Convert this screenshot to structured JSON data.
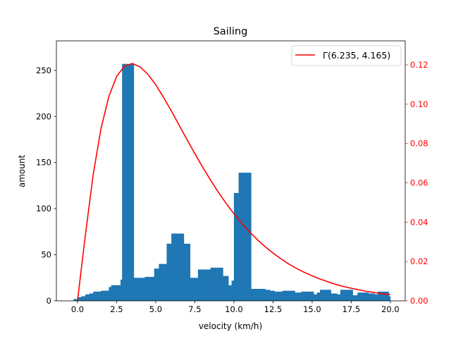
{
  "chart_data": {
    "type": "bar",
    "title": "Sailing",
    "xlabel": "velocity (km/h)",
    "ylabel": "amount",
    "xlim": [
      -1.35,
      20.95
    ],
    "ylim": [
      0,
      282
    ],
    "y2lim": [
      0,
      0.1322
    ],
    "xticks": [
      "0.0",
      "2.5",
      "5.0",
      "7.5",
      "10.0",
      "12.5",
      "15.0",
      "17.5",
      "20.0"
    ],
    "xtick_values": [
      0,
      2.5,
      5,
      7.5,
      10,
      12.5,
      15,
      17.5,
      20
    ],
    "yticks": [
      "0",
      "50",
      "100",
      "150",
      "200",
      "250"
    ],
    "ytick_values": [
      0,
      50,
      100,
      150,
      200,
      250
    ],
    "y2ticks": [
      "0.00",
      "0.02",
      "0.04",
      "0.06",
      "0.08",
      "0.10",
      "0.12"
    ],
    "y2tick_values": [
      0,
      0.02,
      0.04,
      0.06,
      0.08,
      0.1,
      0.12
    ],
    "bar_color": "#1f77b4",
    "line_color": "#ff0000",
    "legend": {
      "label": "Γ(6.235, 4.165)",
      "placement": "top-right"
    },
    "bars": [
      {
        "x0": -0.25,
        "x1": 0.0,
        "value": 2
      },
      {
        "x0": 0.0,
        "x1": 0.25,
        "value": 4
      },
      {
        "x0": 0.25,
        "x1": 0.5,
        "value": 5
      },
      {
        "x0": 0.5,
        "x1": 0.75,
        "value": 7
      },
      {
        "x0": 0.75,
        "x1": 1.0,
        "value": 8
      },
      {
        "x0": 1.0,
        "x1": 1.5,
        "value": 10
      },
      {
        "x0": 1.5,
        "x1": 2.0,
        "value": 11
      },
      {
        "x0": 2.0,
        "x1": 2.15,
        "value": 15
      },
      {
        "x0": 2.15,
        "x1": 2.75,
        "value": 17
      },
      {
        "x0": 2.75,
        "x1": 2.85,
        "value": 23
      },
      {
        "x0": 2.85,
        "x1": 3.6,
        "value": 257
      },
      {
        "x0": 3.6,
        "x1": 4.3,
        "value": 25
      },
      {
        "x0": 4.3,
        "x1": 4.9,
        "value": 26
      },
      {
        "x0": 4.9,
        "x1": 5.2,
        "value": 35
      },
      {
        "x0": 5.2,
        "x1": 5.7,
        "value": 40
      },
      {
        "x0": 5.7,
        "x1": 6.0,
        "value": 62
      },
      {
        "x0": 6.0,
        "x1": 6.8,
        "value": 73
      },
      {
        "x0": 6.8,
        "x1": 7.2,
        "value": 62
      },
      {
        "x0": 7.2,
        "x1": 7.7,
        "value": 25
      },
      {
        "x0": 7.7,
        "x1": 8.5,
        "value": 34
      },
      {
        "x0": 8.5,
        "x1": 9.3,
        "value": 36
      },
      {
        "x0": 9.3,
        "x1": 9.65,
        "value": 27
      },
      {
        "x0": 9.65,
        "x1": 9.85,
        "value": 17
      },
      {
        "x0": 9.85,
        "x1": 10.0,
        "value": 22
      },
      {
        "x0": 10.0,
        "x1": 10.3,
        "value": 117
      },
      {
        "x0": 10.3,
        "x1": 11.1,
        "value": 139
      },
      {
        "x0": 11.1,
        "x1": 12.0,
        "value": 13
      },
      {
        "x0": 12.0,
        "x1": 12.3,
        "value": 12
      },
      {
        "x0": 12.3,
        "x1": 12.6,
        "value": 11
      },
      {
        "x0": 12.6,
        "x1": 13.1,
        "value": 10
      },
      {
        "x0": 13.1,
        "x1": 13.9,
        "value": 11
      },
      {
        "x0": 13.9,
        "x1": 14.3,
        "value": 9
      },
      {
        "x0": 14.3,
        "x1": 15.1,
        "value": 10
      },
      {
        "x0": 15.1,
        "x1": 15.3,
        "value": 7
      },
      {
        "x0": 15.3,
        "x1": 15.5,
        "value": 9
      },
      {
        "x0": 15.5,
        "x1": 16.2,
        "value": 12
      },
      {
        "x0": 16.2,
        "x1": 16.6,
        "value": 8
      },
      {
        "x0": 16.6,
        "x1": 16.8,
        "value": 7
      },
      {
        "x0": 16.8,
        "x1": 17.6,
        "value": 12
      },
      {
        "x0": 17.6,
        "x1": 17.9,
        "value": 6
      },
      {
        "x0": 17.9,
        "x1": 18.6,
        "value": 9
      },
      {
        "x0": 18.6,
        "x1": 19.0,
        "value": 8
      },
      {
        "x0": 19.0,
        "x1": 19.2,
        "value": 7
      },
      {
        "x0": 19.2,
        "x1": 19.9,
        "value": 10
      },
      {
        "x0": 19.9,
        "x1": 20.0,
        "value": 5
      }
    ],
    "curve": {
      "x": [
        0,
        0.5,
        1,
        1.5,
        2,
        2.5,
        3,
        3.5,
        4,
        4.5,
        5,
        5.5,
        6,
        6.5,
        7,
        7.5,
        8,
        8.5,
        9,
        9.5,
        10,
        10.5,
        11,
        11.5,
        12,
        12.5,
        13,
        13.5,
        14,
        14.5,
        15,
        15.5,
        16,
        16.5,
        17,
        17.5,
        18,
        18.5,
        19,
        19.5,
        20
      ],
      "y": [
        0,
        0.0332,
        0.064,
        0.0875,
        0.1038,
        0.1141,
        0.1193,
        0.1207,
        0.119,
        0.1152,
        0.1099,
        0.1035,
        0.0966,
        0.0893,
        0.082,
        0.0749,
        0.068,
        0.0615,
        0.0553,
        0.0496,
        0.0443,
        0.0395,
        0.0351,
        0.0311,
        0.0275,
        0.0243,
        0.0214,
        0.0188,
        0.0165,
        0.0145,
        0.0127,
        0.0111,
        0.0097,
        0.0084,
        0.0073,
        0.0064,
        0.0056,
        0.0048,
        0.0042,
        0.0036,
        0.0031
      ]
    }
  }
}
